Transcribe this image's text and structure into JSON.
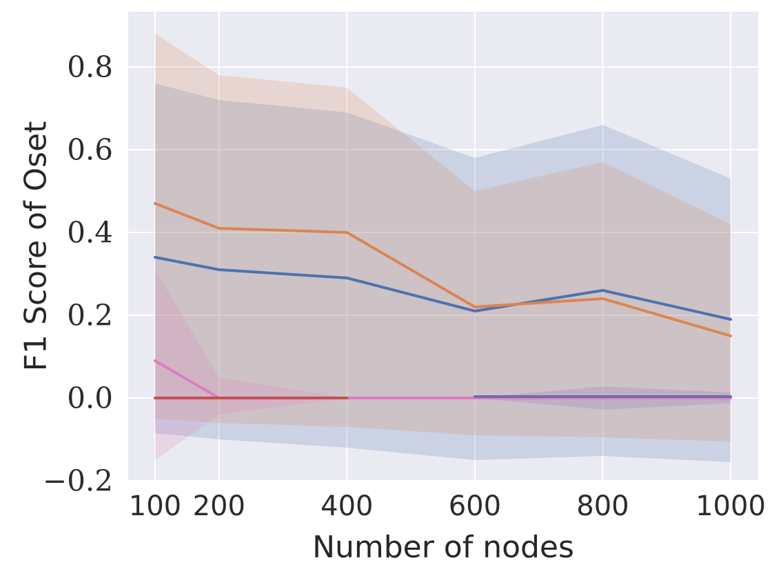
{
  "figure": {
    "background": "#ffffff",
    "plot_background": "#eaeaf2",
    "grid_color": "#ffffff",
    "text_color": "#262626"
  },
  "chart_data": {
    "type": "line",
    "title": "",
    "xlabel": "Number of nodes",
    "ylabel": "F1 Score of Oset",
    "x": [
      100,
      200,
      400,
      600,
      800,
      1000
    ],
    "xlim": [
      58,
      1043.1
    ],
    "ylim": [
      -0.2,
      0.9333
    ],
    "grid": true,
    "legend_position": "none",
    "xticks": {
      "values": [
        100,
        200,
        400,
        600,
        800,
        1000
      ],
      "labels": [
        "100",
        "200",
        "400",
        "600",
        "800",
        "1000"
      ]
    },
    "yticks": {
      "values": [
        -0.2,
        0.0,
        0.2,
        0.4,
        0.6,
        0.8
      ],
      "labels": [
        "−0.2",
        "0.0",
        "0.2",
        "0.4",
        "0.6",
        "0.8"
      ]
    },
    "band_alpha": 0.2,
    "line_width": 4,
    "series": [
      {
        "name": "blue-series",
        "color": "#4c72b0",
        "x": [
          100,
          200,
          400,
          600,
          800,
          1000
        ],
        "values": [
          0.34,
          0.31,
          0.29,
          0.21,
          0.26,
          0.19
        ],
        "band_upper": [
          0.76,
          0.72,
          0.69,
          0.58,
          0.66,
          0.53
        ],
        "band_lower": [
          -0.085,
          -0.1,
          -0.12,
          -0.15,
          -0.14,
          -0.155
        ]
      },
      {
        "name": "orange-series",
        "color": "#dd8452",
        "x": [
          100,
          200,
          400,
          600,
          800,
          1000
        ],
        "values": [
          0.47,
          0.41,
          0.4,
          0.22,
          0.24,
          0.15
        ],
        "band_upper": [
          0.88,
          0.78,
          0.75,
          0.5,
          0.57,
          0.42
        ],
        "band_lower": [
          -0.05,
          -0.06,
          -0.07,
          -0.09,
          -0.095,
          -0.105
        ]
      },
      {
        "name": "pink-series",
        "color": "#dc7ec0",
        "x": [
          100,
          200,
          400,
          600,
          800,
          1000
        ],
        "values": [
          0.09,
          0.0,
          0.0,
          0.0,
          0.0,
          0.0
        ],
        "band_upper": [
          0.31,
          0.05,
          0.0,
          0.0,
          0.0,
          0.0
        ],
        "band_lower": [
          -0.15,
          -0.04,
          0.0,
          0.0,
          0.0,
          0.0
        ]
      },
      {
        "name": "red-series",
        "color": "#c44e52",
        "x": [
          100,
          200,
          400
        ],
        "values": [
          0.0,
          0.0,
          0.0
        ],
        "band_upper": null,
        "band_lower": null
      },
      {
        "name": "purple-series",
        "color": "#7668ae",
        "x": [
          600,
          800,
          1000
        ],
        "values": [
          0.0,
          0.0,
          0.0
        ],
        "band_upper": [
          0.0,
          0.028,
          0.013
        ],
        "band_lower": [
          0.0,
          -0.028,
          -0.013
        ]
      }
    ]
  }
}
